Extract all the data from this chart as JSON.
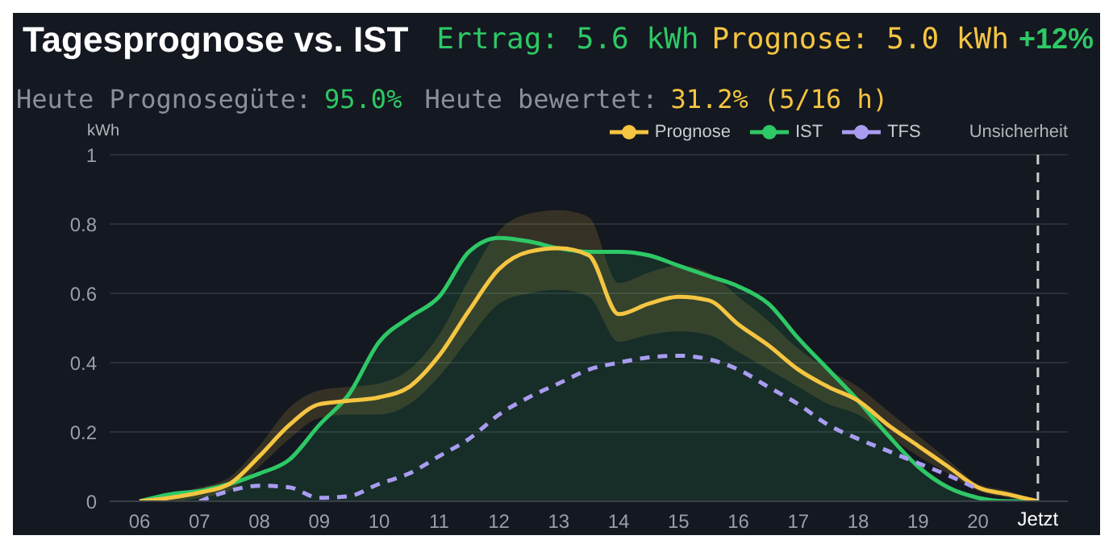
{
  "chart_data": {
    "type": "line",
    "title": "Tagesprognose vs. IST",
    "annotations": [
      "Ertrag: 5.6 kWh",
      "Prognose: 5.0 kWh",
      "+12%",
      "Heute Prognosegüte:",
      "95.0%",
      "Heute bewertet:",
      "31.2% (5/16 h)",
      "Unsicherheit"
    ],
    "ylabel": "kWh",
    "x": [
      6,
      6.5,
      7,
      7.5,
      8,
      8.5,
      9,
      9.5,
      10,
      10.5,
      11,
      11.5,
      12,
      12.5,
      13,
      13.5,
      14,
      14.5,
      15,
      15.5,
      16,
      16.5,
      17,
      17.5,
      18,
      18.5,
      19,
      19.5,
      20,
      20.5,
      21
    ],
    "series": [
      {
        "name": "Prognose",
        "color": "#f5c542",
        "values": [
          0,
          0.01,
          0.025,
          0.05,
          0.13,
          0.22,
          0.28,
          0.29,
          0.3,
          0.33,
          0.42,
          0.55,
          0.67,
          0.72,
          0.73,
          0.71,
          0.54,
          0.57,
          0.59,
          0.58,
          0.51,
          0.45,
          0.38,
          0.33,
          0.29,
          0.22,
          0.16,
          0.1,
          0.04,
          0.02,
          0
        ],
        "lower": [
          0,
          0,
          0.01,
          0.03,
          0.1,
          0.18,
          0.24,
          0.25,
          0.25,
          0.28,
          0.36,
          0.47,
          0.57,
          0.6,
          0.61,
          0.59,
          0.46,
          0.48,
          0.49,
          0.48,
          0.43,
          0.38,
          0.33,
          0.28,
          0.25,
          0.19,
          0.13,
          0.08,
          0.03,
          0.01,
          0
        ],
        "upper": [
          0,
          0.02,
          0.04,
          0.07,
          0.16,
          0.27,
          0.32,
          0.33,
          0.34,
          0.38,
          0.48,
          0.64,
          0.78,
          0.83,
          0.84,
          0.82,
          0.63,
          0.66,
          0.68,
          0.66,
          0.59,
          0.52,
          0.44,
          0.38,
          0.33,
          0.26,
          0.19,
          0.12,
          0.05,
          0.03,
          0
        ]
      },
      {
        "name": "IST",
        "color": "#2ec866",
        "type": "area",
        "values": [
          0,
          0.02,
          0.03,
          0.05,
          0.08,
          0.12,
          0.22,
          0.31,
          0.46,
          0.53,
          0.59,
          0.72,
          0.76,
          0.75,
          0.73,
          0.72,
          0.72,
          0.71,
          0.68,
          0.65,
          0.62,
          0.57,
          0.47,
          0.38,
          0.29,
          0.19,
          0.1,
          0.04,
          0.01,
          0,
          0
        ]
      },
      {
        "name": "TFS",
        "color": "#a99cf0",
        "line_style": "dashed",
        "values": [
          null,
          null,
          0,
          0.03,
          0.045,
          0.04,
          0.01,
          0.015,
          0.05,
          0.08,
          0.13,
          0.18,
          0.25,
          0.3,
          0.34,
          0.38,
          0.4,
          0.415,
          0.42,
          0.41,
          0.38,
          0.33,
          0.28,
          0.22,
          0.18,
          0.145,
          0.11,
          0.075,
          0.035,
          null,
          null
        ]
      }
    ],
    "xlim": [
      5.5,
      21.5
    ],
    "xticks": [
      {
        "value": 6,
        "label": "06"
      },
      {
        "value": 7,
        "label": "07"
      },
      {
        "value": 8,
        "label": "08"
      },
      {
        "value": 9,
        "label": "09"
      },
      10,
      11,
      12,
      13,
      14,
      15,
      16,
      17,
      18,
      19,
      20,
      {
        "value": 21,
        "label": null
      }
    ],
    "ylim": [
      0,
      1
    ],
    "yticks": [
      0,
      0.2,
      0.4,
      0.6,
      0.8,
      1
    ],
    "ref_lines": [
      {
        "axis": "x",
        "value": 21,
        "label": "Jetzt",
        "color": "#cccccc",
        "line_style": "dashed"
      }
    ],
    "grid": "y",
    "legend": "top right",
    "marker": "none",
    "line_style": "solid"
  }
}
